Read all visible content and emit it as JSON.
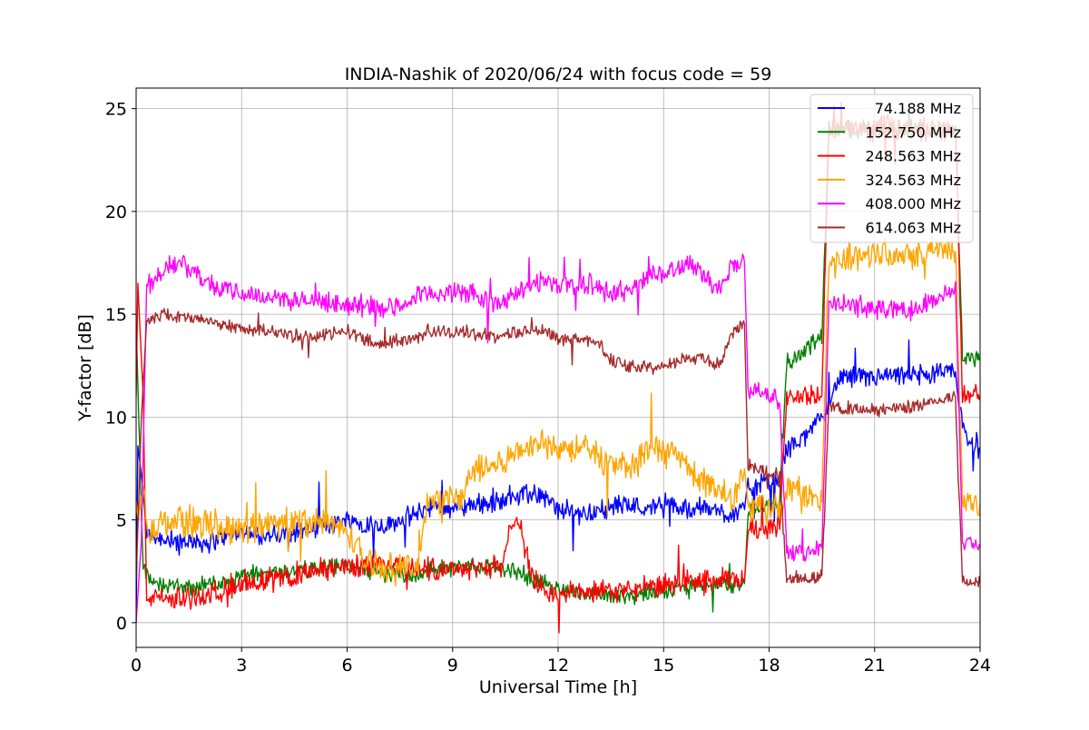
{
  "chart_data": {
    "type": "line",
    "title": "INDIA-Nashik of 2020/06/24 with focus code = 59",
    "xlabel": "Universal Time [h]",
    "ylabel": "Y-factor [dB]",
    "xlim": [
      0,
      24
    ],
    "ylim": [
      -1.2,
      26
    ],
    "xticks": [
      0,
      3,
      6,
      9,
      12,
      15,
      18,
      21,
      24
    ],
    "yticks": [
      0,
      5,
      10,
      15,
      20,
      25
    ],
    "grid": true,
    "legend_position": "top-right",
    "series": [
      {
        "name": "74.188 MHz",
        "color": "#0000ff",
        "noise": 0.6,
        "points": [
          [
            0,
            0
          ],
          [
            0.05,
            8.6
          ],
          [
            0.2,
            6.5
          ],
          [
            0.3,
            4.3
          ],
          [
            1,
            4
          ],
          [
            2,
            3.9
          ],
          [
            3,
            4.4
          ],
          [
            4,
            4.2
          ],
          [
            5,
            4.6
          ],
          [
            6,
            5
          ],
          [
            7,
            4.7
          ],
          [
            8,
            5.3
          ],
          [
            8.3,
            5.6
          ],
          [
            9,
            5.6
          ],
          [
            9.3,
            5.7
          ],
          [
            10,
            5.8
          ],
          [
            10.4,
            5.9
          ],
          [
            10.8,
            6.2
          ],
          [
            11.5,
            6.3
          ],
          [
            12,
            5.5
          ],
          [
            12.8,
            5.3
          ],
          [
            13.5,
            5.6
          ],
          [
            14,
            5.8
          ],
          [
            14.6,
            5.5
          ],
          [
            15,
            5.9
          ],
          [
            15.5,
            5.5
          ],
          [
            16,
            5.6
          ],
          [
            16.8,
            5.3
          ],
          [
            17.3,
            5.5
          ],
          [
            17.4,
            6.6
          ],
          [
            18.3,
            6.9
          ],
          [
            18.5,
            8.5
          ],
          [
            19,
            9
          ],
          [
            19.5,
            10
          ],
          [
            20,
            11.9
          ],
          [
            21,
            11.9
          ],
          [
            22,
            12
          ],
          [
            23.3,
            12.2
          ],
          [
            23.4,
            10.8
          ],
          [
            23.6,
            8.9
          ],
          [
            24,
            8.5
          ]
        ]
      },
      {
        "name": "152.750 MHz",
        "color": "#008000",
        "noise": 0.5,
        "points": [
          [
            0,
            14.5
          ],
          [
            0.2,
            2.6
          ],
          [
            0.5,
            1.9
          ],
          [
            1.5,
            1.7
          ],
          [
            2.5,
            2
          ],
          [
            3,
            2.3
          ],
          [
            4,
            2.5
          ],
          [
            5,
            2.6
          ],
          [
            6,
            2.8
          ],
          [
            7,
            2.4
          ],
          [
            8,
            2.3
          ],
          [
            8.3,
            2.6
          ],
          [
            9.3,
            2.7
          ],
          [
            10.4,
            2.7
          ],
          [
            10.8,
            2.5
          ],
          [
            11.5,
            2
          ],
          [
            12,
            1.6
          ],
          [
            13,
            1.4
          ],
          [
            14,
            1.3
          ],
          [
            14.6,
            1.5
          ],
          [
            15,
            1.6
          ],
          [
            16,
            1.8
          ],
          [
            17.3,
            1.9
          ],
          [
            17.4,
            5.5
          ],
          [
            18.3,
            5.8
          ],
          [
            18.5,
            12.5
          ],
          [
            19.5,
            14
          ],
          [
            19.7,
            24
          ],
          [
            21.5,
            24
          ],
          [
            23.3,
            24
          ],
          [
            23.5,
            13
          ],
          [
            24,
            12.8
          ]
        ]
      },
      {
        "name": "248.563 MHz",
        "color": "#ff0000",
        "noise": 0.7,
        "points": [
          [
            0,
            11
          ],
          [
            0.05,
            16.5
          ],
          [
            0.2,
            11
          ],
          [
            0.3,
            1.3
          ],
          [
            1,
            1.1
          ],
          [
            2,
            1.3
          ],
          [
            3,
            2
          ],
          [
            4,
            2.1
          ],
          [
            5,
            2.5
          ],
          [
            6,
            2.7
          ],
          [
            7,
            2.9
          ],
          [
            8,
            2.6
          ],
          [
            8.3,
            2.6
          ],
          [
            9.3,
            2.7
          ],
          [
            10.4,
            2.7
          ],
          [
            10.8,
            5.5
          ],
          [
            11.3,
            2
          ],
          [
            11.8,
            1.4
          ],
          [
            12.5,
            1.5
          ],
          [
            13.5,
            1.5
          ],
          [
            14.2,
            1.6
          ],
          [
            14.6,
            1.7
          ],
          [
            15.3,
            1.9
          ],
          [
            16,
            2
          ],
          [
            17.3,
            2.1
          ],
          [
            17.4,
            4.5
          ],
          [
            18.3,
            4.8
          ],
          [
            18.5,
            11
          ],
          [
            19.5,
            11
          ],
          [
            19.7,
            24
          ],
          [
            21.5,
            24
          ],
          [
            23.3,
            24
          ],
          [
            23.5,
            11.2
          ],
          [
            24,
            11
          ]
        ]
      },
      {
        "name": "324.563 MHz",
        "color": "#ffa500",
        "noise": 0.9,
        "points": [
          [
            0,
            5.5
          ],
          [
            0.2,
            6
          ],
          [
            0.4,
            4.3
          ],
          [
            1,
            5
          ],
          [
            2,
            4.8
          ],
          [
            3,
            4.6
          ],
          [
            4,
            4.8
          ],
          [
            5,
            5
          ],
          [
            6,
            4.5
          ],
          [
            6.5,
            3
          ],
          [
            7,
            2.7
          ],
          [
            8,
            2.6
          ],
          [
            8.3,
            6
          ],
          [
            9.3,
            6.1
          ],
          [
            9.5,
            7.3
          ],
          [
            10.4,
            7.8
          ],
          [
            11,
            8.5
          ],
          [
            11.5,
            8.8
          ],
          [
            12,
            8.6
          ],
          [
            12.8,
            8.4
          ],
          [
            13.5,
            7.8
          ],
          [
            14.2,
            7.5
          ],
          [
            14.5,
            8.3
          ],
          [
            15.3,
            8.3
          ],
          [
            16,
            7
          ],
          [
            16.6,
            6.5
          ],
          [
            17,
            6
          ],
          [
            17.3,
            7.5
          ],
          [
            17.4,
            5.8
          ],
          [
            18.3,
            5.5
          ],
          [
            18.5,
            6.5
          ],
          [
            19.5,
            6
          ],
          [
            19.7,
            17.5
          ],
          [
            21,
            18
          ],
          [
            22,
            18
          ],
          [
            23.3,
            18.2
          ],
          [
            23.5,
            6
          ],
          [
            24,
            5.8
          ]
        ]
      },
      {
        "name": "408.000 MHz",
        "color": "#ff00ff",
        "noise": 0.6,
        "points": [
          [
            0,
            0
          ],
          [
            0.15,
            4
          ],
          [
            0.3,
            16.3
          ],
          [
            1,
            17.5
          ],
          [
            1.5,
            17.3
          ],
          [
            2,
            16.5
          ],
          [
            3,
            16
          ],
          [
            4,
            15.8
          ],
          [
            5,
            15.6
          ],
          [
            6,
            15.5
          ],
          [
            7,
            15.3
          ],
          [
            7.5,
            15.4
          ],
          [
            8,
            15.8
          ],
          [
            8.3,
            16
          ],
          [
            9.3,
            16.1
          ],
          [
            10.4,
            15.5
          ],
          [
            11,
            16.2
          ],
          [
            11.5,
            16.6
          ],
          [
            12,
            16.5
          ],
          [
            12.8,
            16.5
          ],
          [
            13.5,
            16
          ],
          [
            14,
            16.2
          ],
          [
            14.6,
            16.8
          ],
          [
            15,
            17.1
          ],
          [
            15.5,
            17.4
          ],
          [
            16,
            17.3
          ],
          [
            16.5,
            16.2
          ],
          [
            17,
            17.4
          ],
          [
            17.3,
            17.5
          ],
          [
            17.4,
            11.3
          ],
          [
            18.3,
            10.9
          ],
          [
            18.5,
            3.5
          ],
          [
            19.5,
            3.5
          ],
          [
            19.7,
            15.5
          ],
          [
            21,
            15.3
          ],
          [
            22,
            15.2
          ],
          [
            23.3,
            16.2
          ],
          [
            23.5,
            3.9
          ],
          [
            24,
            3.8
          ]
        ]
      },
      {
        "name": "614.063 MHz",
        "color": "#a52a2a",
        "noise": 0.4,
        "points": [
          [
            0,
            2
          ],
          [
            0.15,
            10
          ],
          [
            0.3,
            14.8
          ],
          [
            1,
            15
          ],
          [
            2,
            14.7
          ],
          [
            3,
            14.3
          ],
          [
            4,
            14.1
          ],
          [
            5,
            13.9
          ],
          [
            6,
            14.2
          ],
          [
            6.5,
            13.8
          ],
          [
            7,
            13.5
          ],
          [
            8,
            13.9
          ],
          [
            8.3,
            14.2
          ],
          [
            9.3,
            14.1
          ],
          [
            10.4,
            13.9
          ],
          [
            11,
            14.2
          ],
          [
            11.5,
            14.3
          ],
          [
            12,
            13.8
          ],
          [
            13,
            13.8
          ],
          [
            13.5,
            12.8
          ],
          [
            14,
            12.5
          ],
          [
            14.6,
            12.4
          ],
          [
            15,
            12.6
          ],
          [
            15.5,
            12.8
          ],
          [
            16,
            12.9
          ],
          [
            16.6,
            12.5
          ],
          [
            17,
            14.3
          ],
          [
            17.3,
            14.5
          ],
          [
            17.4,
            7.7
          ],
          [
            18.3,
            7.2
          ],
          [
            18.5,
            2.2
          ],
          [
            19.5,
            2.2
          ],
          [
            19.7,
            10.5
          ],
          [
            21,
            10.3
          ],
          [
            22,
            10.5
          ],
          [
            23.3,
            11
          ],
          [
            23.5,
            2
          ],
          [
            24,
            1.9
          ]
        ]
      }
    ]
  }
}
